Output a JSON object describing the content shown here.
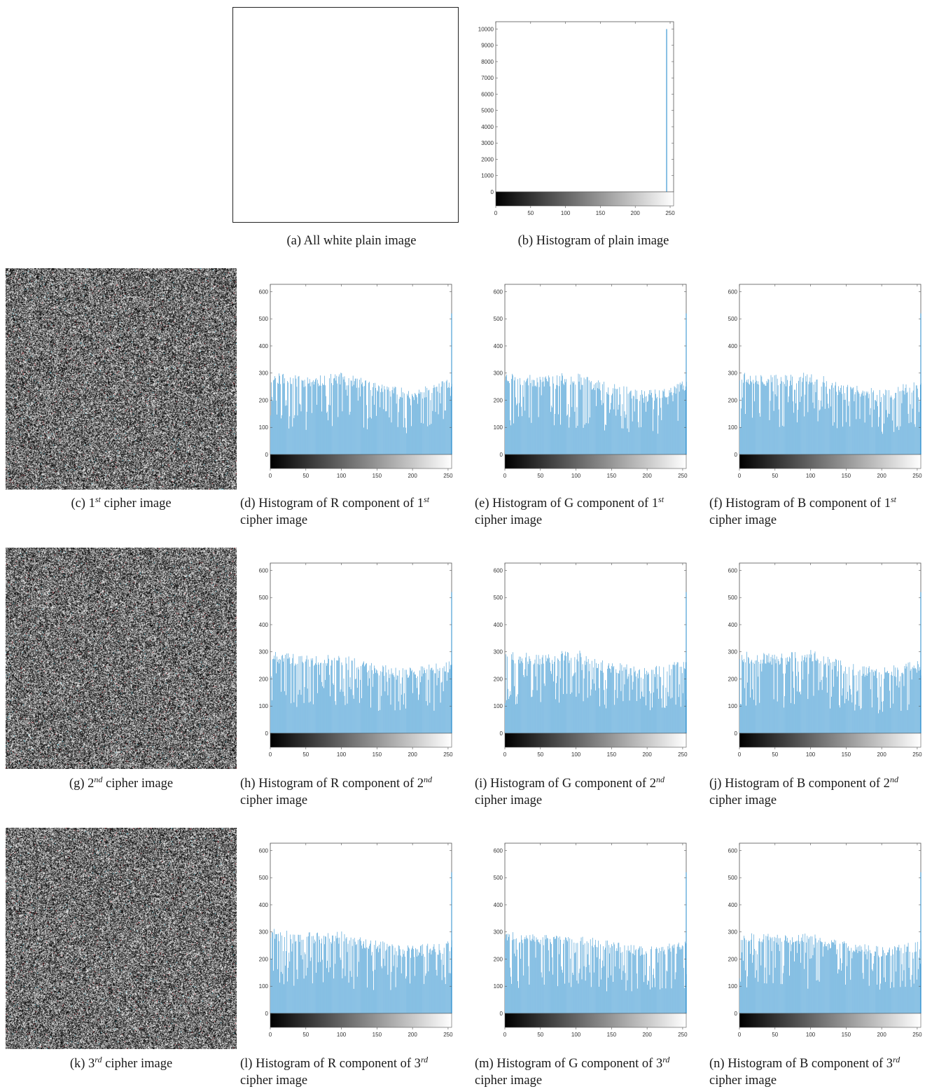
{
  "captions": {
    "a": "(a) All white plain image",
    "b": "(b) Histogram of plain image",
    "c": {
      "prefix": "(c) 1",
      "sup": "st",
      "suffix": " cipher image"
    },
    "d": {
      "line1": "(d) Histogram of R component of 1",
      "sup": "st",
      "line2": "cipher image"
    },
    "e": {
      "line1": "(e) Histogram of G component of 1",
      "sup": "st",
      "line2": "cipher image"
    },
    "f": {
      "line1": "(f) Histogram of B component of 1",
      "sup": "st",
      "line2": "cipher image"
    },
    "g": {
      "prefix": "(g) 2",
      "sup": "nd",
      "suffix": " cipher image"
    },
    "h": {
      "line1": "(h) Histogram of R component of 2",
      "sup": "nd",
      "line2": "cipher image"
    },
    "i": {
      "line1": "(i) Histogram of G component of 2",
      "sup": "nd",
      "line2": "cipher image"
    },
    "j": {
      "line1": "(j) Histogram of B component of 2",
      "sup": "nd",
      "line2": "cipher image"
    },
    "k": {
      "prefix": "(k) 3",
      "sup": "rd",
      "suffix": " cipher image"
    },
    "l": {
      "line1": "(l) Histogram of R component of 3",
      "sup": "rd",
      "line2": "cipher image"
    },
    "m": {
      "line1": "(m) Histogram of G component of 3",
      "sup": "rd",
      "line2": "cipher image"
    },
    "n": {
      "line1": "(n) Histogram of B component of 3",
      "sup": "rd",
      "line2": "cipher image"
    }
  },
  "colors": {
    "bar": "#4a9fd5",
    "axis": "#555555",
    "noise_accent_red": "#c0303a",
    "noise_accent_cyan": "#3fb8c8"
  },
  "chart_data": [
    {
      "id": "b",
      "type": "bar",
      "title": "",
      "xlabel": "",
      "ylabel": "",
      "xlim": [
        0,
        255
      ],
      "ylim": [
        0,
        10000
      ],
      "xticks": [
        "0",
        "50",
        "100",
        "150",
        "200",
        "250"
      ],
      "yticks": [
        "0",
        "1000",
        "2000",
        "3000",
        "4000",
        "5000",
        "6000",
        "7000",
        "8000",
        "9000",
        "10000"
      ],
      "spikes": [
        {
          "x": 245,
          "y": 10000
        }
      ],
      "colorbar": "grayscale"
    },
    {
      "id": "d",
      "type": "bar",
      "xlim": [
        0,
        255
      ],
      "ylim": [
        0,
        600
      ],
      "xticks": [
        "0",
        "50",
        "100",
        "150",
        "200",
        "250"
      ],
      "yticks": [
        "0",
        "100",
        "200",
        "300",
        "400",
        "500",
        "600"
      ],
      "profile": {
        "x": [
          0,
          50,
          100,
          150,
          200,
          250,
          255
        ],
        "y": [
          285,
          265,
          280,
          245,
          215,
          255,
          260
        ]
      },
      "spread": 22,
      "seed": 11,
      "spike": {
        "x": 255,
        "y": 520
      },
      "colorbar": "grayscale"
    },
    {
      "id": "e",
      "type": "bar",
      "xlim": [
        0,
        255
      ],
      "ylim": [
        0,
        600
      ],
      "xticks": [
        "0",
        "50",
        "100",
        "150",
        "200",
        "250"
      ],
      "yticks": [
        "0",
        "100",
        "200",
        "300",
        "400",
        "500",
        "600"
      ],
      "profile": {
        "x": [
          0,
          50,
          100,
          150,
          200,
          250,
          255
        ],
        "y": [
          285,
          270,
          280,
          240,
          215,
          250,
          255
        ]
      },
      "spread": 24,
      "seed": 23,
      "spike": {
        "x": 255,
        "y": 520
      },
      "colorbar": "grayscale"
    },
    {
      "id": "f",
      "type": "bar",
      "xlim": [
        0,
        255
      ],
      "ylim": [
        0,
        600
      ],
      "xticks": [
        "0",
        "50",
        "100",
        "150",
        "200",
        "250"
      ],
      "yticks": [
        "0",
        "100",
        "200",
        "300",
        "400",
        "500",
        "600"
      ],
      "profile": {
        "x": [
          0,
          50,
          100,
          150,
          200,
          250,
          255
        ],
        "y": [
          285,
          270,
          280,
          240,
          215,
          250,
          255
        ]
      },
      "spread": 24,
      "seed": 37,
      "spike": {
        "x": 255,
        "y": 520
      },
      "colorbar": "grayscale"
    },
    {
      "id": "h",
      "type": "bar",
      "xlim": [
        0,
        255
      ],
      "ylim": [
        0,
        600
      ],
      "xticks": [
        "0",
        "50",
        "100",
        "150",
        "200",
        "250"
      ],
      "yticks": [
        "0",
        "100",
        "200",
        "300",
        "400",
        "500",
        "600"
      ],
      "profile": {
        "x": [
          0,
          50,
          100,
          150,
          200,
          250,
          255
        ],
        "y": [
          280,
          265,
          270,
          235,
          220,
          245,
          255
        ]
      },
      "spread": 22,
      "seed": 41,
      "spike": {
        "x": 255,
        "y": 520
      },
      "colorbar": "grayscale"
    },
    {
      "id": "i",
      "type": "bar",
      "xlim": [
        0,
        255
      ],
      "ylim": [
        0,
        600
      ],
      "xticks": [
        "0",
        "50",
        "100",
        "150",
        "200",
        "250"
      ],
      "yticks": [
        "0",
        "100",
        "200",
        "300",
        "400",
        "500",
        "600"
      ],
      "profile": {
        "x": [
          0,
          50,
          100,
          150,
          200,
          250,
          255
        ],
        "y": [
          285,
          270,
          285,
          240,
          220,
          245,
          255
        ]
      },
      "spread": 24,
      "seed": 53,
      "spike": {
        "x": 255,
        "y": 520
      },
      "colorbar": "grayscale"
    },
    {
      "id": "j",
      "type": "bar",
      "xlim": [
        0,
        255
      ],
      "ylim": [
        0,
        600
      ],
      "xticks": [
        "0",
        "50",
        "100",
        "150",
        "200",
        "250"
      ],
      "yticks": [
        "0",
        "100",
        "200",
        "300",
        "400",
        "500",
        "600"
      ],
      "profile": {
        "x": [
          0,
          50,
          100,
          150,
          200,
          250,
          255
        ],
        "y": [
          285,
          270,
          285,
          240,
          220,
          245,
          255
        ]
      },
      "spread": 24,
      "seed": 67,
      "spike": {
        "x": 255,
        "y": 520
      },
      "colorbar": "grayscale"
    },
    {
      "id": "l",
      "type": "bar",
      "xlim": [
        0,
        255
      ],
      "ylim": [
        0,
        600
      ],
      "xticks": [
        "0",
        "50",
        "100",
        "150",
        "200",
        "250"
      ],
      "yticks": [
        "0",
        "100",
        "200",
        "300",
        "400",
        "500",
        "600"
      ],
      "profile": {
        "x": [
          0,
          50,
          100,
          150,
          200,
          250,
          255
        ],
        "y": [
          290,
          275,
          280,
          245,
          225,
          245,
          255
        ]
      },
      "spread": 24,
      "seed": 71,
      "spike": {
        "x": 255,
        "y": 520
      },
      "colorbar": "grayscale"
    },
    {
      "id": "m",
      "type": "bar",
      "xlim": [
        0,
        255
      ],
      "ylim": [
        0,
        600
      ],
      "xticks": [
        "0",
        "50",
        "100",
        "150",
        "200",
        "250"
      ],
      "yticks": [
        "0",
        "100",
        "200",
        "300",
        "400",
        "500",
        "600"
      ],
      "profile": {
        "x": [
          0,
          50,
          100,
          150,
          200,
          250,
          255
        ],
        "y": [
          285,
          270,
          275,
          245,
          225,
          245,
          250
        ]
      },
      "spread": 20,
      "seed": 83,
      "spike": {
        "x": 255,
        "y": 520
      },
      "colorbar": "grayscale"
    },
    {
      "id": "n",
      "type": "bar",
      "xlim": [
        0,
        255
      ],
      "ylim": [
        0,
        600
      ],
      "xticks": [
        "0",
        "50",
        "100",
        "150",
        "200",
        "250"
      ],
      "yticks": [
        "0",
        "100",
        "200",
        "300",
        "400",
        "500",
        "600"
      ],
      "profile": {
        "x": [
          0,
          50,
          100,
          150,
          200,
          250,
          255
        ],
        "y": [
          285,
          270,
          275,
          245,
          225,
          245,
          250
        ]
      },
      "spread": 20,
      "seed": 97,
      "spike": {
        "x": 255,
        "y": 520
      },
      "colorbar": "grayscale"
    }
  ]
}
